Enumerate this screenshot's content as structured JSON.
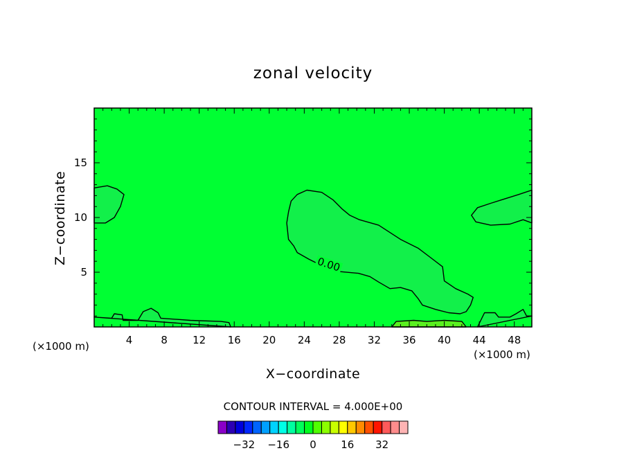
{
  "chart_data": {
    "type": "contour",
    "title": "zonal velocity",
    "xlabel": "X−coordinate",
    "ylabel": "Z−coordinate",
    "x_units_left": "(×1000 m)",
    "x_units_right": "(×1000 m)",
    "xlim": [
      0,
      50
    ],
    "ylim": [
      0,
      20
    ],
    "x_ticks": [
      "4",
      "8",
      "12",
      "16",
      "20",
      "24",
      "28",
      "32",
      "36",
      "40",
      "44",
      "48"
    ],
    "y_ticks": [
      "5",
      "10",
      "15"
    ],
    "background_color": "#00ff33",
    "contour_labels": [
      "0.00"
    ],
    "contours": [
      {
        "name": "left-bulge",
        "shade": "#12f04a",
        "points": [
          [
            0,
            12.7
          ],
          [
            1.5,
            12.9
          ],
          [
            2.6,
            12.6
          ],
          [
            3.4,
            12.1
          ],
          [
            3.0,
            11.0
          ],
          [
            2.3,
            10.0
          ],
          [
            1.3,
            9.5
          ],
          [
            0,
            9.5
          ]
        ]
      },
      {
        "name": "central-tongue",
        "shade": "#12f04a",
        "points": [
          [
            22.5,
            11.5
          ],
          [
            23.2,
            12.1
          ],
          [
            24.3,
            12.5
          ],
          [
            26.0,
            12.3
          ],
          [
            27.3,
            11.6
          ],
          [
            28.3,
            10.8
          ],
          [
            29.2,
            10.2
          ],
          [
            30.3,
            9.8
          ],
          [
            32.5,
            9.3
          ],
          [
            35.0,
            8.0
          ],
          [
            37.0,
            7.2
          ],
          [
            38.5,
            6.3
          ],
          [
            39.8,
            5.5
          ],
          [
            40.0,
            4.2
          ],
          [
            41.3,
            3.5
          ],
          [
            42.7,
            3.0
          ],
          [
            43.3,
            2.7
          ],
          [
            43.0,
            2.0
          ],
          [
            42.5,
            1.4
          ],
          [
            41.8,
            1.2
          ],
          [
            40.5,
            1.3
          ],
          [
            39.0,
            1.6
          ],
          [
            37.5,
            2.0
          ],
          [
            37.0,
            2.6
          ],
          [
            36.3,
            3.3
          ],
          [
            35.0,
            3.6
          ],
          [
            33.8,
            3.5
          ],
          [
            32.5,
            4.1
          ],
          [
            31.5,
            4.6
          ],
          [
            30.2,
            4.9
          ],
          [
            27.5,
            5.1
          ],
          [
            26.0,
            5.6
          ],
          [
            24.5,
            6.2
          ],
          [
            23.2,
            6.8
          ],
          [
            22.8,
            7.4
          ],
          [
            22.2,
            8.0
          ],
          [
            22.0,
            9.5
          ],
          [
            22.2,
            10.5
          ]
        ]
      },
      {
        "name": "right-bulge",
        "shade": "#12f04a",
        "points": [
          [
            50,
            12.5
          ],
          [
            48.5,
            12.1
          ],
          [
            46.5,
            11.6
          ],
          [
            45.3,
            11.3
          ],
          [
            43.8,
            10.9
          ],
          [
            43.1,
            10.2
          ],
          [
            43.6,
            9.6
          ],
          [
            45.3,
            9.3
          ],
          [
            47.5,
            9.4
          ],
          [
            49.0,
            9.8
          ],
          [
            50,
            9.5
          ]
        ]
      },
      {
        "name": "bottom-left-layer",
        "shade": "#12f04a",
        "points": [
          [
            0,
            0.9
          ],
          [
            2.0,
            0.8
          ],
          [
            2.3,
            1.2
          ],
          [
            3.2,
            1.1
          ],
          [
            3.3,
            0.6
          ],
          [
            5.0,
            0.6
          ],
          [
            5.6,
            1.4
          ],
          [
            6.5,
            1.7
          ],
          [
            7.3,
            1.3
          ],
          [
            7.6,
            0.8
          ],
          [
            11.0,
            0.6
          ],
          [
            14.5,
            0.5
          ],
          [
            15.4,
            0.4
          ],
          [
            15.6,
            0
          ]
        ]
      },
      {
        "name": "bottom-right-layer",
        "shade": "#12f04a",
        "points": [
          [
            43.8,
            0
          ],
          [
            44.6,
            1.3
          ],
          [
            45.8,
            1.3
          ],
          [
            46.2,
            0.9
          ],
          [
            47.5,
            0.9
          ],
          [
            48.2,
            1.2
          ],
          [
            49.0,
            1.6
          ],
          [
            49.4,
            1.0
          ],
          [
            50,
            1.0
          ]
        ]
      },
      {
        "name": "bottom-warm-strip",
        "shade": "#5af020",
        "points": [
          [
            34.0,
            0
          ],
          [
            34.5,
            0.5
          ],
          [
            36.5,
            0.6
          ],
          [
            38.0,
            0.5
          ],
          [
            40.0,
            0.6
          ],
          [
            42.0,
            0.5
          ],
          [
            42.5,
            0
          ]
        ]
      }
    ]
  },
  "footer": {
    "interval_label": "CONTOUR INTERVAL = 4.000E+00"
  },
  "colorbar": {
    "colors": [
      "#8a00c8",
      "#2c00b4",
      "#0000dc",
      "#0028ff",
      "#0064ff",
      "#00a0ff",
      "#00d2ff",
      "#00ffe6",
      "#00ffa0",
      "#00ff5a",
      "#00ff1e",
      "#50ff00",
      "#8cff00",
      "#c8ff00",
      "#ffff00",
      "#ffc800",
      "#ff8c00",
      "#ff5000",
      "#ff1400",
      "#ff5a5a",
      "#ff8c8c",
      "#ffb4b4"
    ],
    "tick_labels": [
      "−32",
      "−16",
      "0",
      "16",
      "32"
    ]
  }
}
